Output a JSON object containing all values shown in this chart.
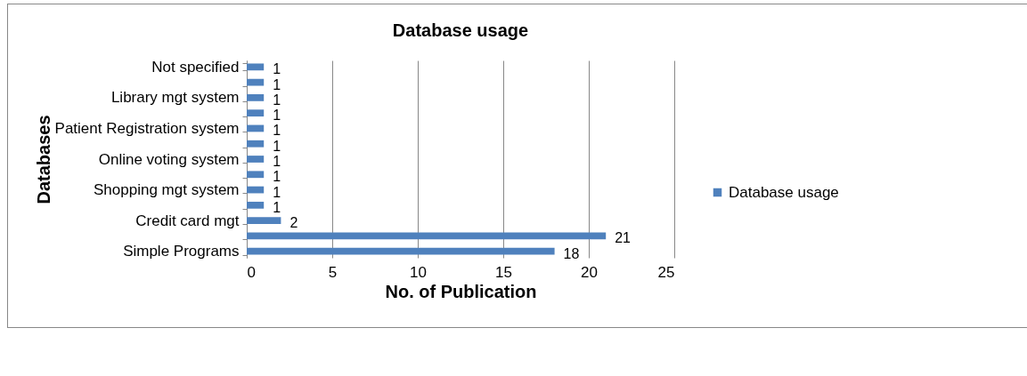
{
  "chart_data": {
    "type": "bar",
    "orientation": "horizontal",
    "title": "Database usage",
    "xlabel": "No. of Publication",
    "ylabel": "Databases",
    "categories": [
      "Not specified",
      null,
      "Library mgt system",
      null,
      "Patient Registration system",
      null,
      "Online voting system",
      null,
      "Shopping mgt system",
      null,
      "Credit card mgt",
      null,
      "Simple Programs"
    ],
    "series": [
      {
        "name": "Database usage",
        "color": "#4f81bd",
        "values": [
          1,
          1,
          1,
          1,
          1,
          1,
          1,
          1,
          1,
          1,
          2,
          21,
          18
        ]
      }
    ],
    "xlim": [
      0,
      25
    ],
    "xticks": [
      0,
      5,
      10,
      15,
      20,
      25
    ],
    "grid": "x",
    "legend": "right",
    "data_labels": true
  }
}
